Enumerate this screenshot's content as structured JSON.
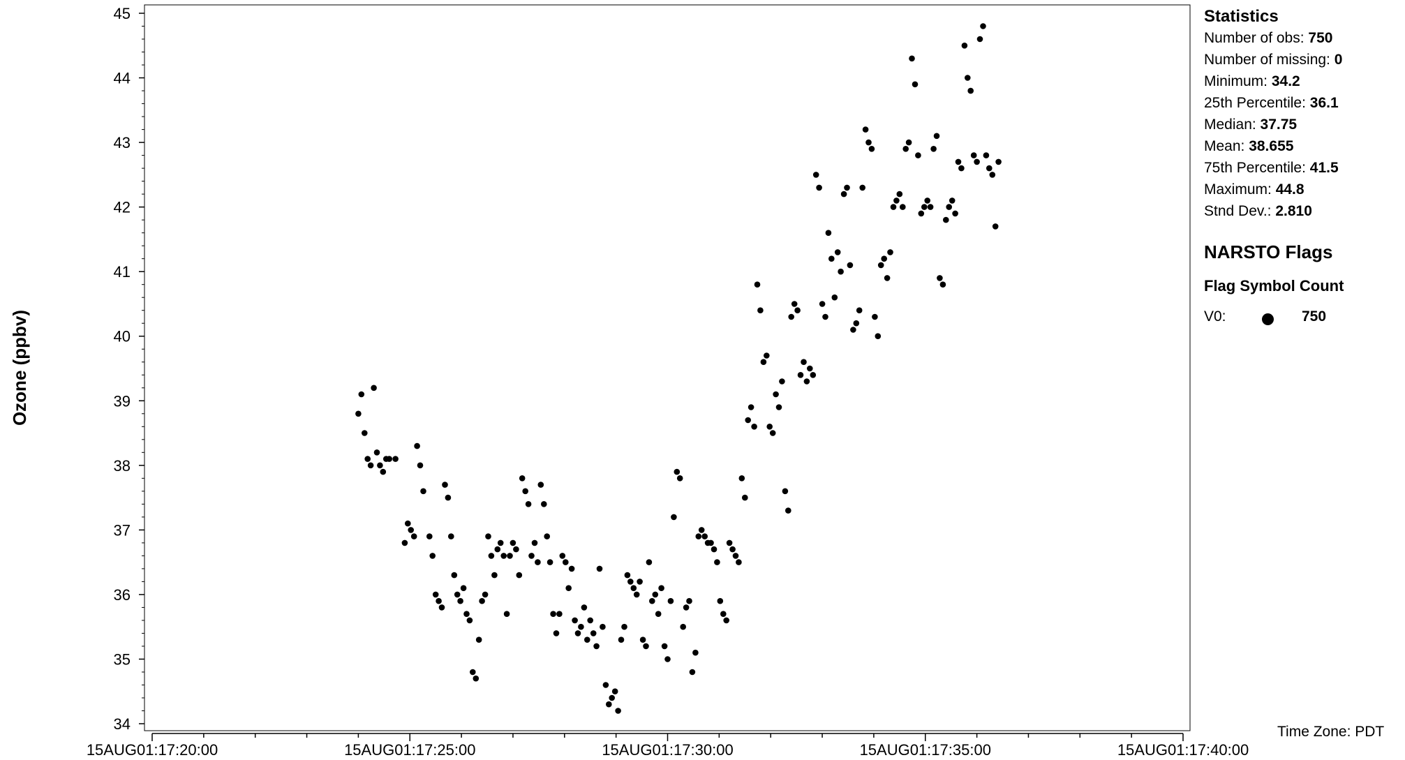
{
  "chart_data": {
    "type": "scatter",
    "ylabel": "Ozone (ppbv)",
    "xlabel": "",
    "x_tick_labels": [
      "15AUG01:17:20:00",
      "15AUG01:17:25:00",
      "15AUG01:17:30:00",
      "15AUG01:17:35:00",
      "15AUG01:17:40:00"
    ],
    "xlim_minutes": [
      20,
      40
    ],
    "ylim": [
      34,
      45
    ],
    "y_ticks": [
      34,
      35,
      36,
      37,
      38,
      39,
      40,
      41,
      42,
      43,
      44,
      45
    ],
    "marker_color": "#000000",
    "grid": false,
    "series": [
      {
        "values": [
          [
            24.0,
            38.8
          ],
          [
            24.06,
            39.1
          ],
          [
            24.12,
            38.5
          ],
          [
            24.18,
            38.1
          ],
          [
            24.24,
            38.0
          ],
          [
            24.3,
            39.2
          ],
          [
            24.36,
            38.2
          ],
          [
            24.42,
            38.0
          ],
          [
            24.48,
            37.9
          ],
          [
            24.54,
            38.1
          ],
          [
            24.6,
            38.1
          ],
          [
            24.72,
            38.1
          ],
          [
            24.9,
            36.8
          ],
          [
            24.96,
            37.1
          ],
          [
            25.02,
            37.0
          ],
          [
            25.08,
            36.9
          ],
          [
            25.14,
            38.3
          ],
          [
            25.2,
            38.0
          ],
          [
            25.26,
            37.6
          ],
          [
            25.38,
            36.9
          ],
          [
            25.44,
            36.6
          ],
          [
            25.5,
            36.0
          ],
          [
            25.56,
            35.9
          ],
          [
            25.62,
            35.8
          ],
          [
            25.68,
            37.7
          ],
          [
            25.74,
            37.5
          ],
          [
            25.8,
            36.9
          ],
          [
            25.86,
            36.3
          ],
          [
            25.92,
            36.0
          ],
          [
            25.98,
            35.9
          ],
          [
            26.04,
            36.1
          ],
          [
            26.1,
            35.7
          ],
          [
            26.16,
            35.6
          ],
          [
            26.22,
            34.8
          ],
          [
            26.28,
            34.7
          ],
          [
            26.34,
            35.3
          ],
          [
            26.4,
            35.9
          ],
          [
            26.46,
            36.0
          ],
          [
            26.52,
            36.9
          ],
          [
            26.58,
            36.6
          ],
          [
            26.64,
            36.3
          ],
          [
            26.7,
            36.7
          ],
          [
            26.76,
            36.8
          ],
          [
            26.82,
            36.6
          ],
          [
            26.88,
            35.7
          ],
          [
            26.94,
            36.6
          ],
          [
            27.0,
            36.8
          ],
          [
            27.06,
            36.7
          ],
          [
            27.12,
            36.3
          ],
          [
            27.18,
            37.8
          ],
          [
            27.24,
            37.6
          ],
          [
            27.3,
            37.4
          ],
          [
            27.36,
            36.6
          ],
          [
            27.42,
            36.8
          ],
          [
            27.48,
            36.5
          ],
          [
            27.54,
            37.7
          ],
          [
            27.6,
            37.4
          ],
          [
            27.66,
            36.9
          ],
          [
            27.72,
            36.5
          ],
          [
            27.78,
            35.7
          ],
          [
            27.84,
            35.4
          ],
          [
            27.9,
            35.7
          ],
          [
            27.96,
            36.6
          ],
          [
            28.02,
            36.5
          ],
          [
            28.08,
            36.1
          ],
          [
            28.14,
            36.4
          ],
          [
            28.2,
            35.6
          ],
          [
            28.26,
            35.4
          ],
          [
            28.32,
            35.5
          ],
          [
            28.38,
            35.8
          ],
          [
            28.44,
            35.3
          ],
          [
            28.5,
            35.6
          ],
          [
            28.56,
            35.4
          ],
          [
            28.62,
            35.2
          ],
          [
            28.68,
            36.4
          ],
          [
            28.74,
            35.5
          ],
          [
            28.8,
            34.6
          ],
          [
            28.86,
            34.3
          ],
          [
            28.92,
            34.4
          ],
          [
            28.98,
            34.5
          ],
          [
            29.04,
            34.2
          ],
          [
            29.1,
            35.3
          ],
          [
            29.16,
            35.5
          ],
          [
            29.22,
            36.3
          ],
          [
            29.28,
            36.2
          ],
          [
            29.34,
            36.1
          ],
          [
            29.4,
            36.0
          ],
          [
            29.46,
            36.2
          ],
          [
            29.52,
            35.3
          ],
          [
            29.58,
            35.2
          ],
          [
            29.64,
            36.5
          ],
          [
            29.7,
            35.9
          ],
          [
            29.76,
            36.0
          ],
          [
            29.82,
            35.7
          ],
          [
            29.88,
            36.1
          ],
          [
            29.94,
            35.2
          ],
          [
            30.0,
            35.0
          ],
          [
            30.06,
            35.9
          ],
          [
            30.12,
            37.2
          ],
          [
            30.18,
            37.9
          ],
          [
            30.24,
            37.8
          ],
          [
            30.3,
            35.5
          ],
          [
            30.36,
            35.8
          ],
          [
            30.42,
            35.9
          ],
          [
            30.48,
            34.8
          ],
          [
            30.54,
            35.1
          ],
          [
            30.6,
            36.9
          ],
          [
            30.66,
            37.0
          ],
          [
            30.72,
            36.9
          ],
          [
            30.78,
            36.8
          ],
          [
            30.84,
            36.8
          ],
          [
            30.9,
            36.7
          ],
          [
            30.96,
            36.5
          ],
          [
            31.02,
            35.9
          ],
          [
            31.08,
            35.7
          ],
          [
            31.14,
            35.6
          ],
          [
            31.2,
            36.8
          ],
          [
            31.26,
            36.7
          ],
          [
            31.32,
            36.6
          ],
          [
            31.38,
            36.5
          ],
          [
            31.44,
            37.8
          ],
          [
            31.5,
            37.5
          ],
          [
            31.56,
            38.7
          ],
          [
            31.62,
            38.9
          ],
          [
            31.68,
            38.6
          ],
          [
            31.74,
            40.8
          ],
          [
            31.8,
            40.4
          ],
          [
            31.86,
            39.6
          ],
          [
            31.92,
            39.7
          ],
          [
            31.98,
            38.6
          ],
          [
            32.04,
            38.5
          ],
          [
            32.1,
            39.1
          ],
          [
            32.16,
            38.9
          ],
          [
            32.22,
            39.3
          ],
          [
            32.28,
            37.6
          ],
          [
            32.34,
            37.3
          ],
          [
            32.4,
            40.3
          ],
          [
            32.46,
            40.5
          ],
          [
            32.52,
            40.4
          ],
          [
            32.58,
            39.4
          ],
          [
            32.64,
            39.6
          ],
          [
            32.7,
            39.3
          ],
          [
            32.76,
            39.5
          ],
          [
            32.82,
            39.4
          ],
          [
            32.88,
            42.5
          ],
          [
            32.94,
            42.3
          ],
          [
            33.0,
            40.5
          ],
          [
            33.06,
            40.3
          ],
          [
            33.12,
            41.6
          ],
          [
            33.18,
            41.2
          ],
          [
            33.24,
            40.6
          ],
          [
            33.3,
            41.3
          ],
          [
            33.36,
            41.0
          ],
          [
            33.42,
            42.2
          ],
          [
            33.48,
            42.3
          ],
          [
            33.54,
            41.1
          ],
          [
            33.6,
            40.1
          ],
          [
            33.66,
            40.2
          ],
          [
            33.72,
            40.4
          ],
          [
            33.78,
            42.3
          ],
          [
            33.84,
            43.2
          ],
          [
            33.9,
            43.0
          ],
          [
            33.96,
            42.9
          ],
          [
            34.02,
            40.3
          ],
          [
            34.08,
            40.0
          ],
          [
            34.14,
            41.1
          ],
          [
            34.2,
            41.2
          ],
          [
            34.26,
            40.9
          ],
          [
            34.32,
            41.3
          ],
          [
            34.38,
            42.0
          ],
          [
            34.44,
            42.1
          ],
          [
            34.5,
            42.2
          ],
          [
            34.56,
            42.0
          ],
          [
            34.62,
            42.9
          ],
          [
            34.68,
            43.0
          ],
          [
            34.74,
            44.3
          ],
          [
            34.8,
            43.9
          ],
          [
            34.86,
            42.8
          ],
          [
            34.92,
            41.9
          ],
          [
            34.98,
            42.0
          ],
          [
            35.04,
            42.1
          ],
          [
            35.1,
            42.0
          ],
          [
            35.16,
            42.9
          ],
          [
            35.22,
            43.1
          ],
          [
            35.28,
            40.9
          ],
          [
            35.34,
            40.8
          ],
          [
            35.4,
            41.8
          ],
          [
            35.46,
            42.0
          ],
          [
            35.52,
            42.1
          ],
          [
            35.58,
            41.9
          ],
          [
            35.64,
            42.7
          ],
          [
            35.7,
            42.6
          ],
          [
            35.76,
            44.5
          ],
          [
            35.82,
            44.0
          ],
          [
            35.88,
            43.8
          ],
          [
            35.94,
            42.8
          ],
          [
            36.0,
            42.7
          ],
          [
            36.06,
            44.6
          ],
          [
            36.12,
            44.8
          ],
          [
            36.18,
            42.8
          ],
          [
            36.24,
            42.6
          ],
          [
            36.3,
            42.5
          ],
          [
            36.36,
            41.7
          ],
          [
            36.42,
            42.7
          ]
        ]
      }
    ]
  },
  "stats": {
    "title": "Statistics",
    "rows": [
      {
        "label": "Number of obs: ",
        "value": "750"
      },
      {
        "label": "Number of missing: ",
        "value": "0"
      },
      {
        "label": "Minimum: ",
        "value": "34.2"
      },
      {
        "label": "25th Percentile: ",
        "value": "36.1"
      },
      {
        "label": "Median: ",
        "value": "37.75"
      },
      {
        "label": "Mean: ",
        "value": "38.655"
      },
      {
        "label": "75th Percentile: ",
        "value": "41.5"
      },
      {
        "label": "Maximum: ",
        "value": "44.8"
      },
      {
        "label": "Stnd Dev.: ",
        "value": "2.810"
      }
    ]
  },
  "flags": {
    "title": "NARSTO Flags",
    "header": "Flag Symbol Count",
    "rows": [
      {
        "flag": "V0:",
        "count": "750"
      }
    ]
  },
  "timezone": "Time Zone: PDT"
}
